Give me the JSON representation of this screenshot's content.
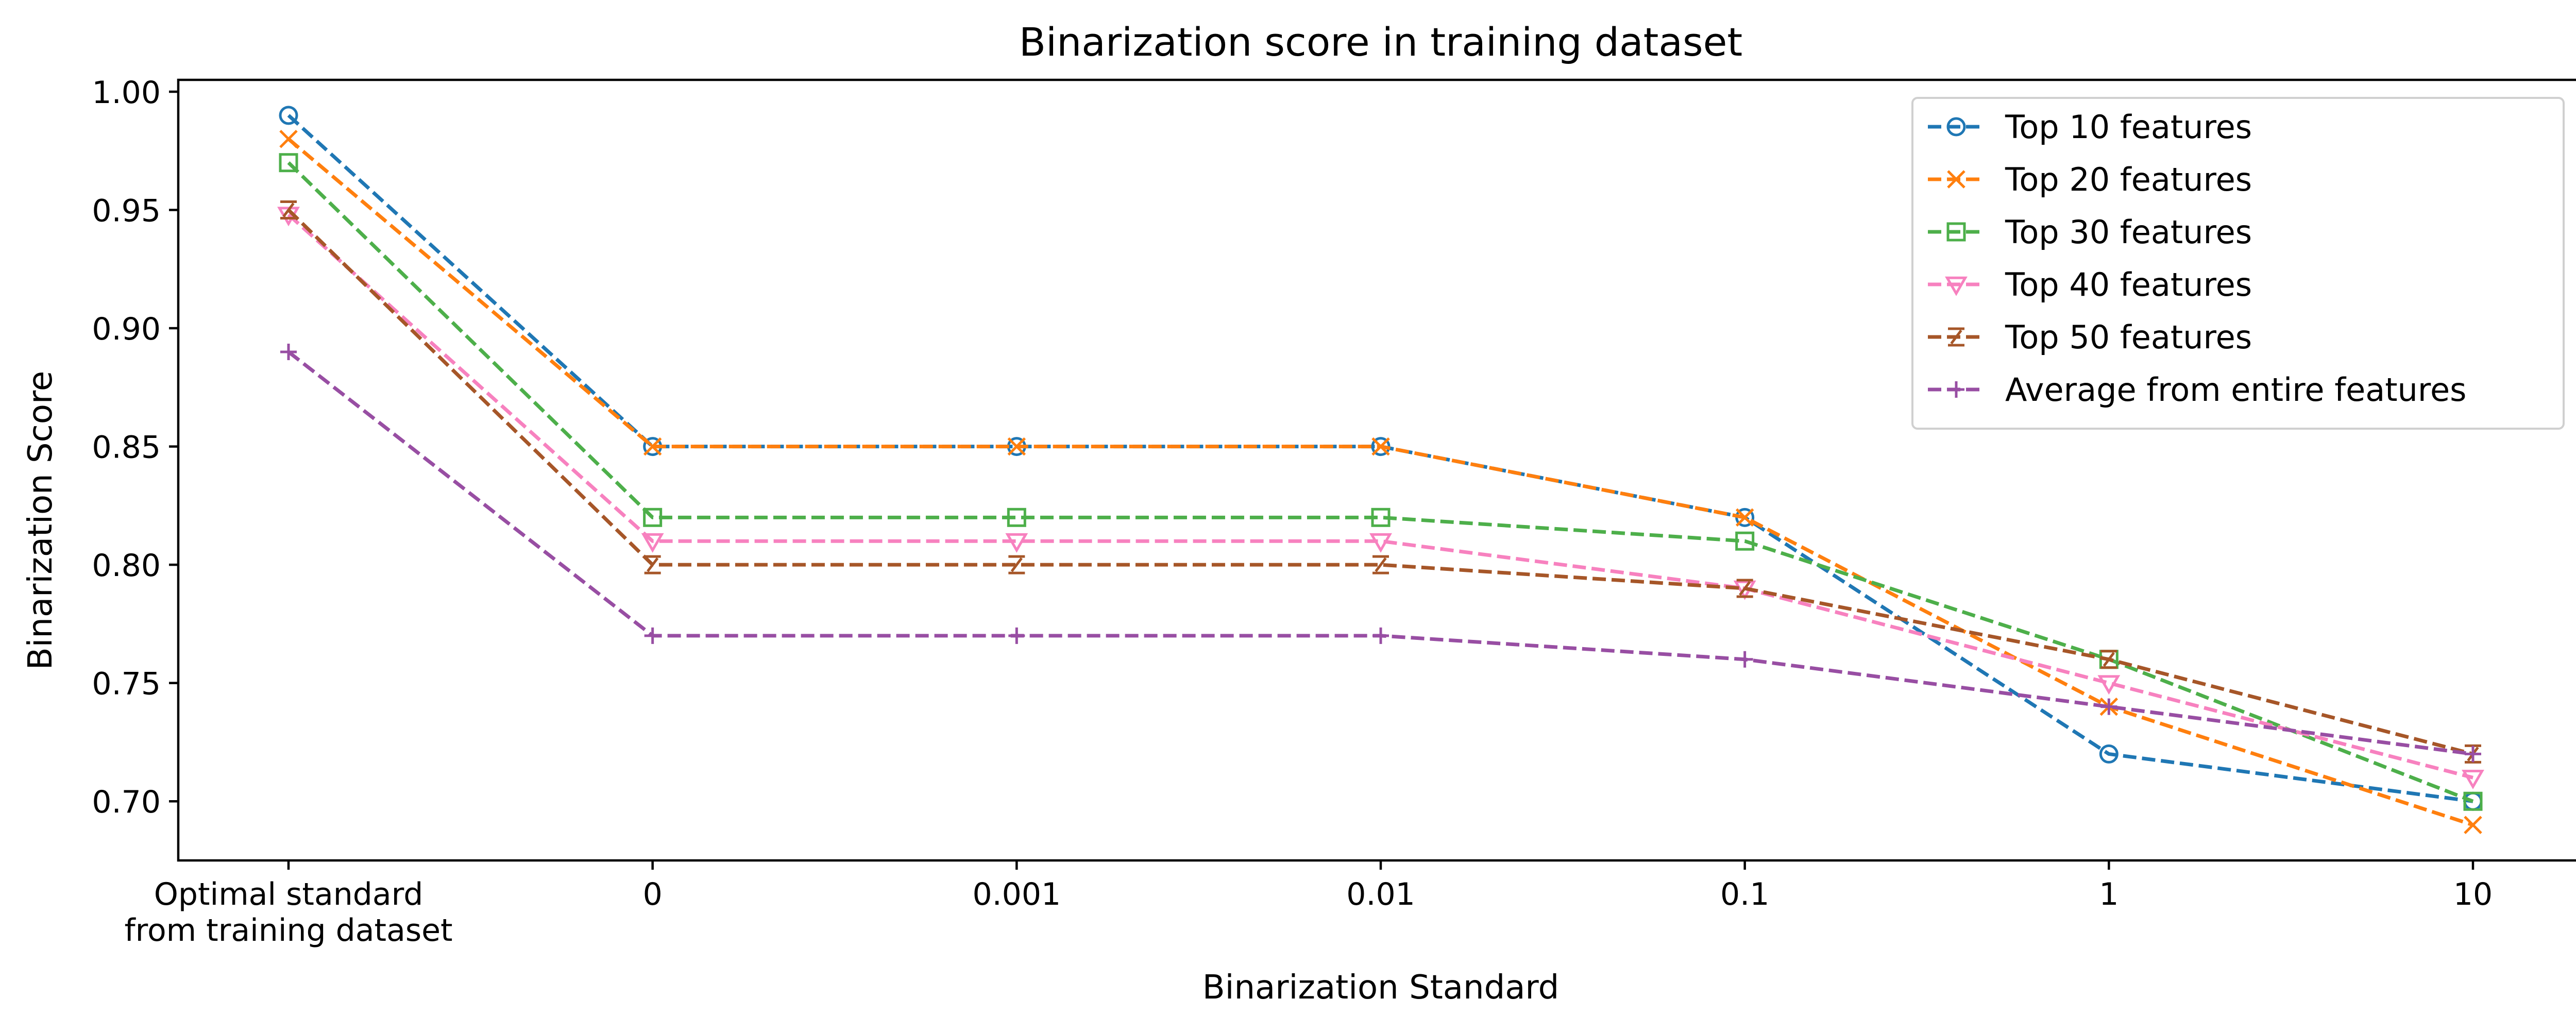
{
  "chart_data": {
    "type": "line",
    "title": "Binarization score in training dataset",
    "xlabel": "Binarization Standard",
    "ylabel": "Binarization Score",
    "categories": [
      [
        "Optimal standard",
        "from training dataset"
      ],
      [
        "0"
      ],
      [
        "0.001"
      ],
      [
        "0.01"
      ],
      [
        "0.1"
      ],
      [
        "1"
      ],
      [
        "10"
      ]
    ],
    "ylim": [
      0.675,
      1.005
    ],
    "yticks": [
      0.7,
      0.75,
      0.8,
      0.85,
      0.9,
      0.95,
      1.0
    ],
    "ytick_labels": [
      "0.70",
      "0.75",
      "0.80",
      "0.85",
      "0.90",
      "0.95",
      "1.00"
    ],
    "grid": false,
    "legend_position": "top-right",
    "series": [
      {
        "name": "Top 10 features",
        "color": "#1f77b4",
        "marker": "circle",
        "values": [
          0.99,
          0.85,
          0.85,
          0.85,
          0.82,
          0.72,
          0.7
        ]
      },
      {
        "name": "Top 20 features",
        "color": "#ff7f0e",
        "marker": "x",
        "values": [
          0.98,
          0.85,
          0.85,
          0.85,
          0.82,
          0.74,
          0.69
        ]
      },
      {
        "name": "Top 30 features",
        "color": "#4daf4a",
        "marker": "square",
        "values": [
          0.97,
          0.82,
          0.82,
          0.82,
          0.81,
          0.76,
          0.7
        ]
      },
      {
        "name": "Top 40 features",
        "color": "#f781bf",
        "marker": "triangle-down",
        "values": [
          0.948,
          0.81,
          0.81,
          0.81,
          0.79,
          0.75,
          0.71
        ]
      },
      {
        "name": "Top 50 features",
        "color": "#a65628",
        "marker": "tri",
        "values": [
          0.95,
          0.8,
          0.8,
          0.8,
          0.79,
          0.76,
          0.72
        ]
      },
      {
        "name": "Average from entire features",
        "color": "#984ea3",
        "marker": "plus",
        "values": [
          0.89,
          0.77,
          0.77,
          0.77,
          0.76,
          0.74,
          0.72
        ]
      }
    ]
  }
}
